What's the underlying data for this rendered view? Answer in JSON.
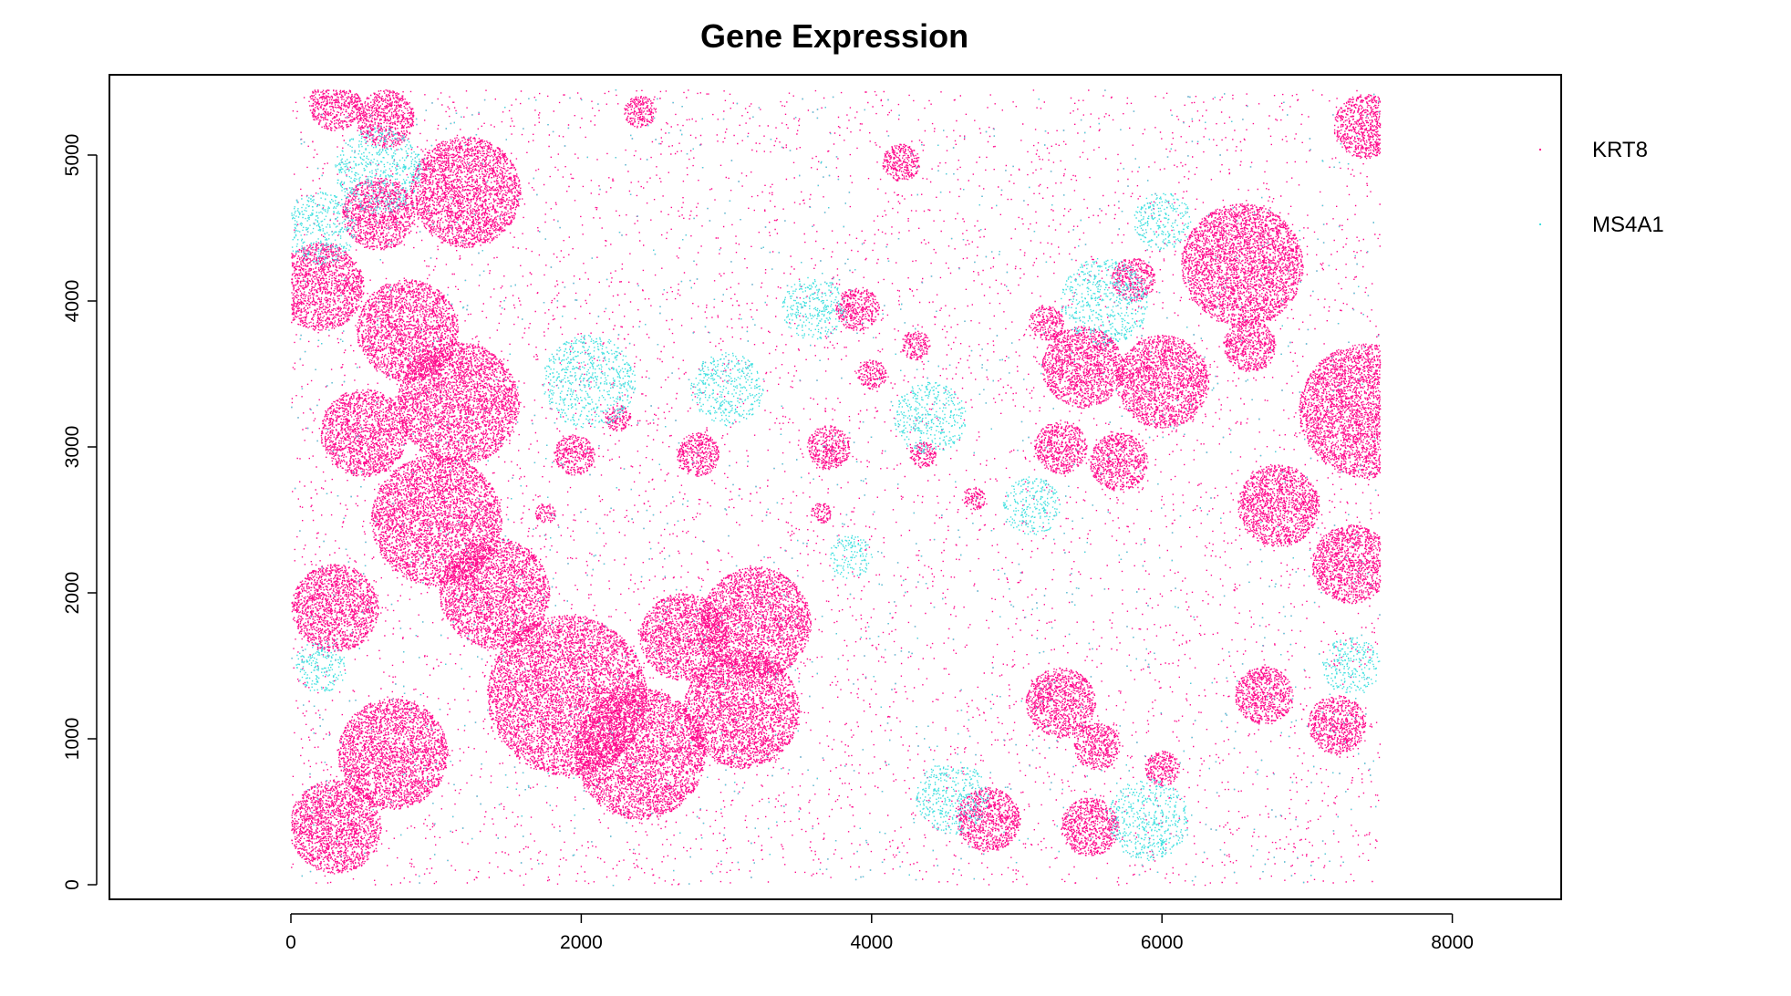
{
  "chart_data": {
    "type": "scatter",
    "title": "Gene Expression",
    "xlabel": "",
    "ylabel": "",
    "xlim": [
      -1250,
      8750
    ],
    "ylim": [
      -100,
      5550
    ],
    "x_ticks": [
      0,
      2000,
      4000,
      6000,
      8000
    ],
    "y_ticks": [
      0,
      1000,
      2000,
      3000,
      4000,
      5000
    ],
    "data_extent": {
      "x": [
        0,
        7500
      ],
      "y": [
        0,
        5450
      ]
    },
    "grid": false,
    "legend_position": "right",
    "series": [
      {
        "name": "KRT8",
        "color": "#ff0a8c",
        "regions": [
          {
            "cx": 300,
            "cy": 5350,
            "r": 180
          },
          {
            "cx": 650,
            "cy": 5250,
            "r": 200
          },
          {
            "cx": 1200,
            "cy": 4750,
            "r": 380
          },
          {
            "cx": 600,
            "cy": 4600,
            "r": 250
          },
          {
            "cx": 200,
            "cy": 4100,
            "r": 300
          },
          {
            "cx": 800,
            "cy": 3800,
            "r": 350
          },
          {
            "cx": 1150,
            "cy": 3300,
            "r": 420
          },
          {
            "cx": 500,
            "cy": 3100,
            "r": 300
          },
          {
            "cx": 1000,
            "cy": 2500,
            "r": 450
          },
          {
            "cx": 1400,
            "cy": 2000,
            "r": 380
          },
          {
            "cx": 300,
            "cy": 1900,
            "r": 300
          },
          {
            "cx": 700,
            "cy": 900,
            "r": 380
          },
          {
            "cx": 300,
            "cy": 400,
            "r": 320
          },
          {
            "cx": 1900,
            "cy": 1300,
            "r": 550
          },
          {
            "cx": 2400,
            "cy": 900,
            "r": 450
          },
          {
            "cx": 3200,
            "cy": 1800,
            "r": 380
          },
          {
            "cx": 3100,
            "cy": 1200,
            "r": 400
          },
          {
            "cx": 2700,
            "cy": 1700,
            "r": 300
          },
          {
            "cx": 1950,
            "cy": 2950,
            "r": 140
          },
          {
            "cx": 2250,
            "cy": 3200,
            "r": 90
          },
          {
            "cx": 2800,
            "cy": 2950,
            "r": 150
          },
          {
            "cx": 1750,
            "cy": 2550,
            "r": 70
          },
          {
            "cx": 2400,
            "cy": 5300,
            "r": 110
          },
          {
            "cx": 4200,
            "cy": 4950,
            "r": 130
          },
          {
            "cx": 3900,
            "cy": 3950,
            "r": 150
          },
          {
            "cx": 4300,
            "cy": 3700,
            "r": 100
          },
          {
            "cx": 3700,
            "cy": 3000,
            "r": 150
          },
          {
            "cx": 4350,
            "cy": 2950,
            "r": 90
          },
          {
            "cx": 4700,
            "cy": 2650,
            "r": 80
          },
          {
            "cx": 3650,
            "cy": 2550,
            "r": 70
          },
          {
            "cx": 5450,
            "cy": 3550,
            "r": 280
          },
          {
            "cx": 6000,
            "cy": 3450,
            "r": 320
          },
          {
            "cx": 5700,
            "cy": 2900,
            "r": 200
          },
          {
            "cx": 5300,
            "cy": 3000,
            "r": 180
          },
          {
            "cx": 6550,
            "cy": 4250,
            "r": 420
          },
          {
            "cx": 6600,
            "cy": 3700,
            "r": 180
          },
          {
            "cx": 7400,
            "cy": 3250,
            "r": 460
          },
          {
            "cx": 6800,
            "cy": 2600,
            "r": 280
          },
          {
            "cx": 7300,
            "cy": 2200,
            "r": 270
          },
          {
            "cx": 7400,
            "cy": 5200,
            "r": 220
          },
          {
            "cx": 5300,
            "cy": 1250,
            "r": 240
          },
          {
            "cx": 5550,
            "cy": 950,
            "r": 160
          },
          {
            "cx": 5500,
            "cy": 400,
            "r": 200
          },
          {
            "cx": 4800,
            "cy": 450,
            "r": 220
          },
          {
            "cx": 6000,
            "cy": 800,
            "r": 120
          },
          {
            "cx": 6700,
            "cy": 1300,
            "r": 200
          },
          {
            "cx": 7200,
            "cy": 1100,
            "r": 200
          },
          {
            "cx": 4000,
            "cy": 3500,
            "r": 100
          },
          {
            "cx": 5200,
            "cy": 3850,
            "r": 120
          },
          {
            "cx": 5800,
            "cy": 4150,
            "r": 150
          }
        ]
      },
      {
        "name": "MS4A1",
        "color": "#40e0e0",
        "regions": [
          {
            "cx": 2050,
            "cy": 3450,
            "r": 320
          },
          {
            "cx": 600,
            "cy": 4900,
            "r": 300
          },
          {
            "cx": 200,
            "cy": 4500,
            "r": 250
          },
          {
            "cx": 3850,
            "cy": 2250,
            "r": 150
          },
          {
            "cx": 4400,
            "cy": 3200,
            "r": 250
          },
          {
            "cx": 4550,
            "cy": 600,
            "r": 250
          },
          {
            "cx": 5900,
            "cy": 450,
            "r": 280
          },
          {
            "cx": 5600,
            "cy": 4000,
            "r": 300
          },
          {
            "cx": 6000,
            "cy": 4550,
            "r": 200
          },
          {
            "cx": 3000,
            "cy": 3400,
            "r": 250
          },
          {
            "cx": 3600,
            "cy": 3950,
            "r": 220
          },
          {
            "cx": 5100,
            "cy": 2600,
            "r": 200
          },
          {
            "cx": 7300,
            "cy": 1500,
            "r": 200
          },
          {
            "cx": 200,
            "cy": 1500,
            "r": 180
          }
        ]
      }
    ]
  }
}
